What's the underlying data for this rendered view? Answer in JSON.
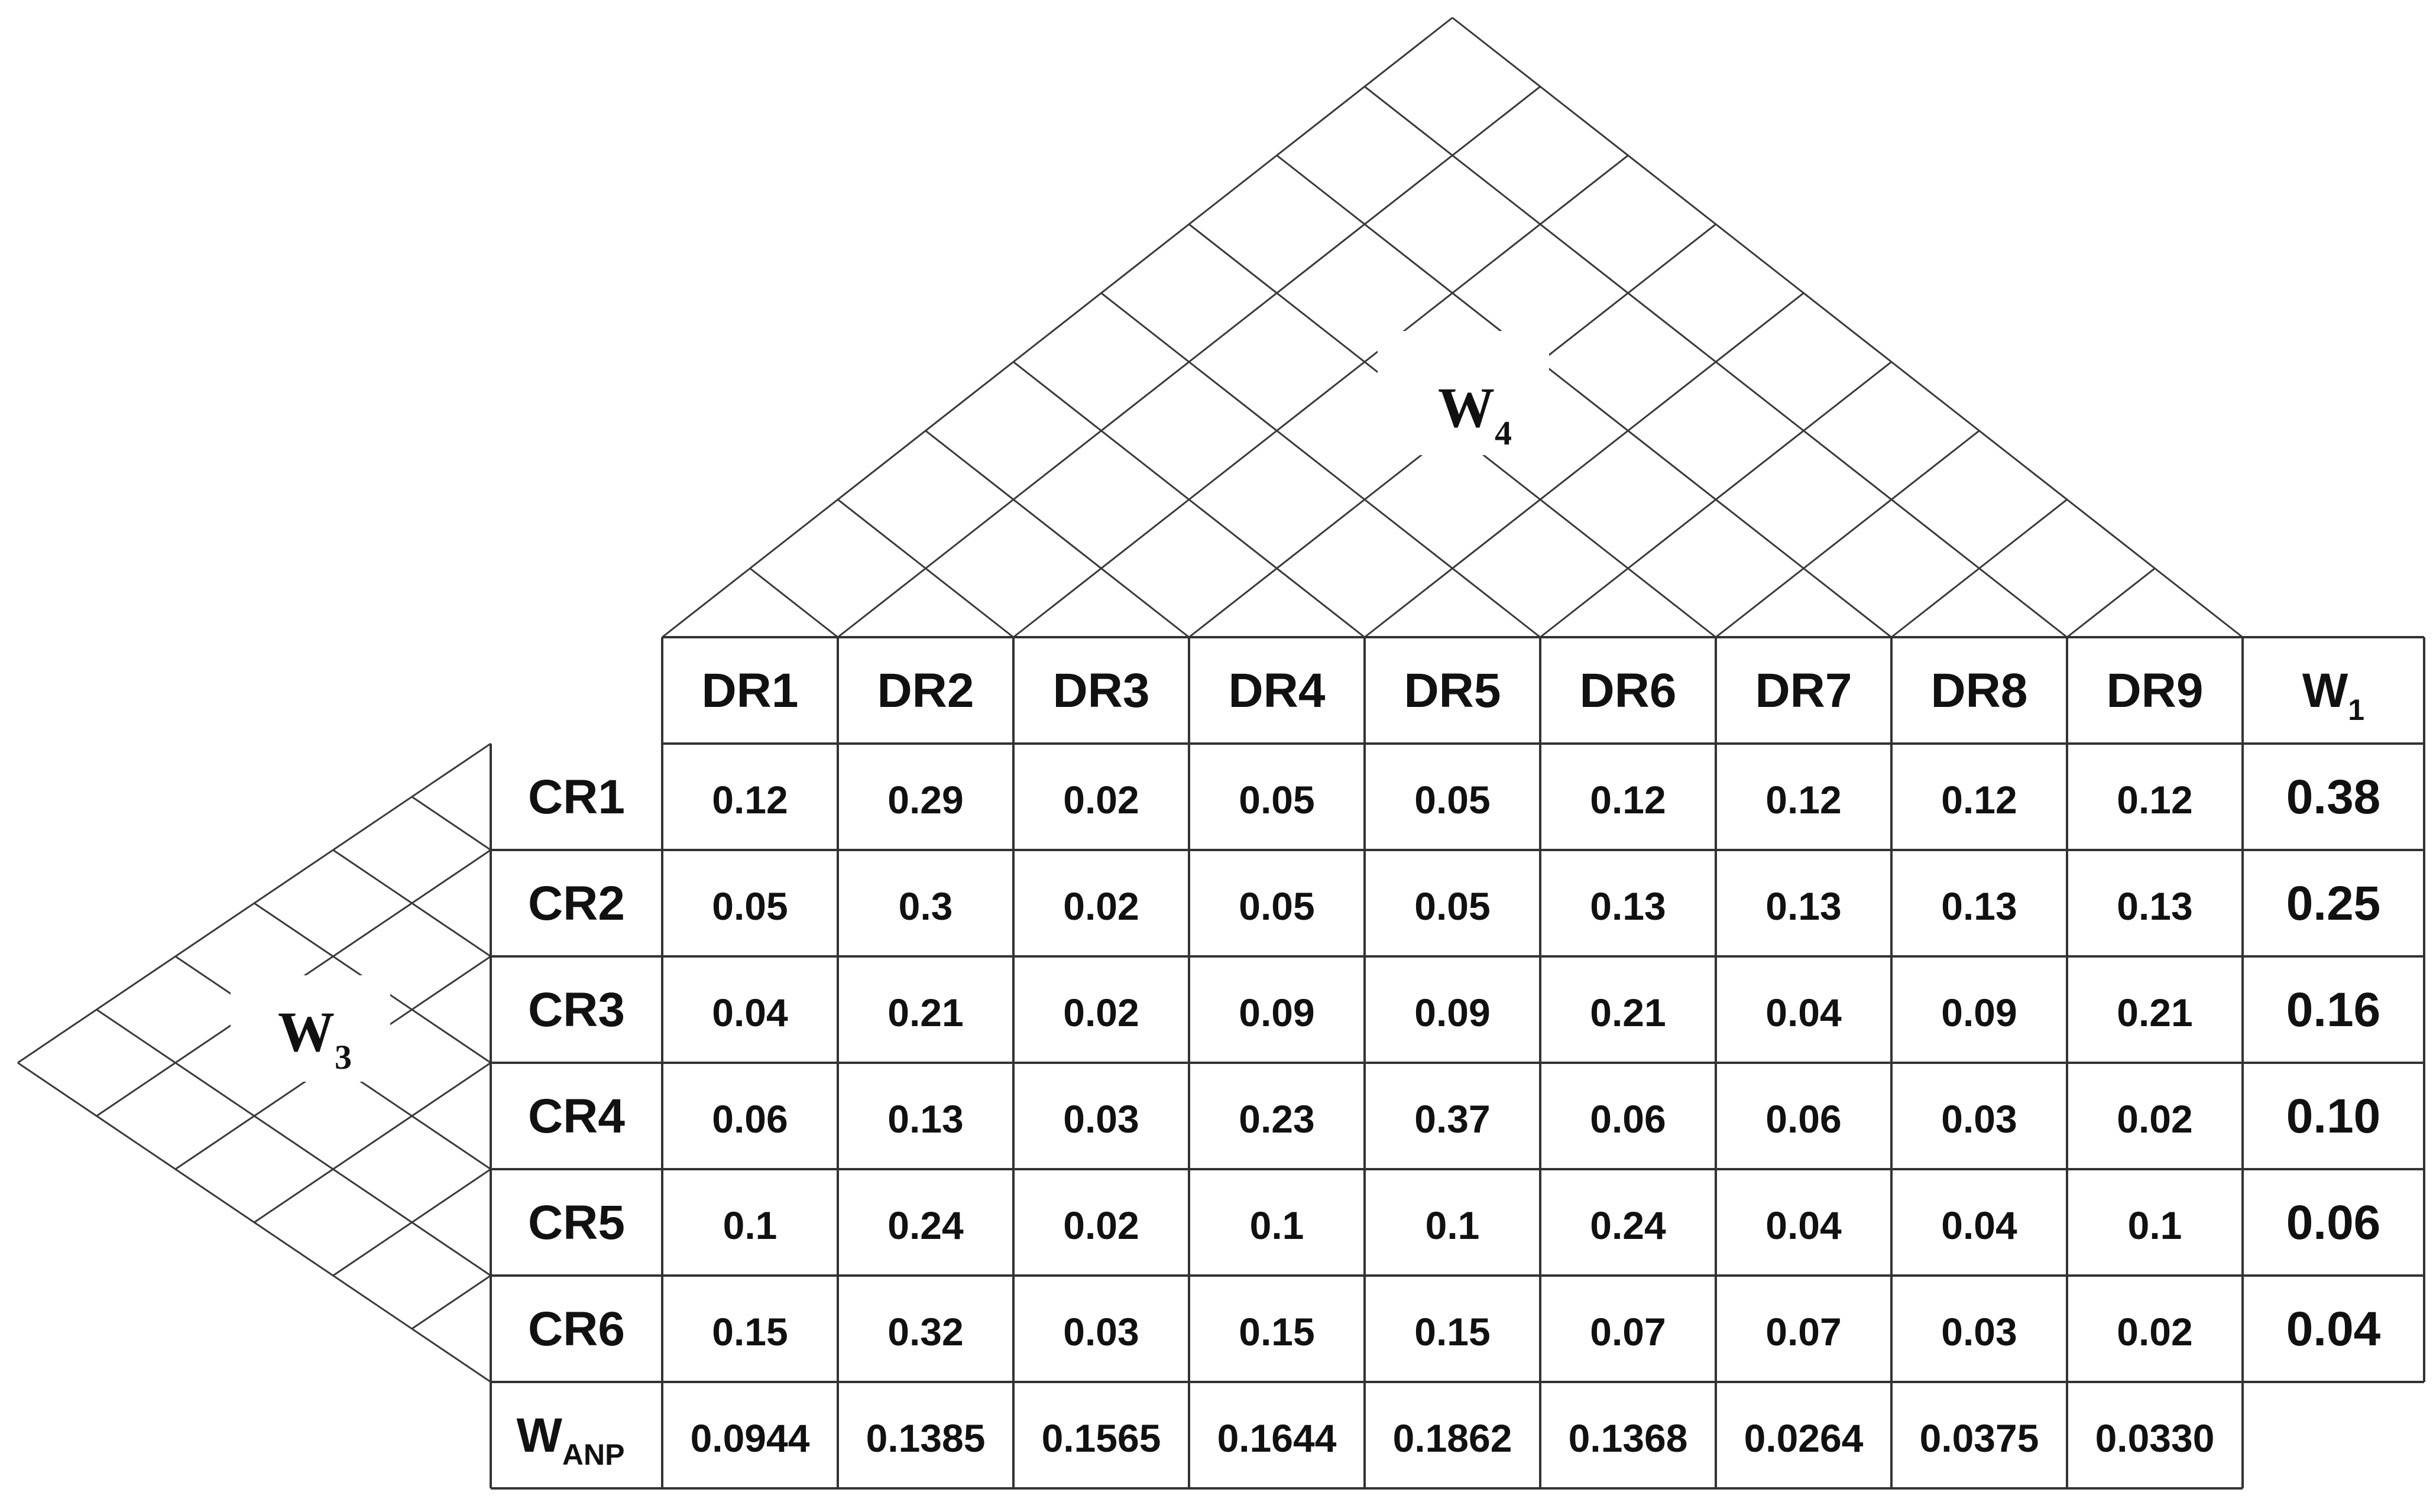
{
  "matrix": {
    "columns": [
      "DR1",
      "DR2",
      "DR3",
      "DR4",
      "DR5",
      "DR6",
      "DR7",
      "DR8",
      "DR9"
    ],
    "weight_column": {
      "main": "W",
      "sub": "1"
    },
    "rows": [
      {
        "label": "CR1",
        "values": [
          "0.12",
          "0.29",
          "0.02",
          "0.05",
          "0.05",
          "0.12",
          "0.12",
          "0.12",
          "0.12"
        ],
        "weight": "0.38"
      },
      {
        "label": "CR2",
        "values": [
          "0.05",
          "0.3",
          "0.02",
          "0.05",
          "0.05",
          "0.13",
          "0.13",
          "0.13",
          "0.13"
        ],
        "weight": "0.25"
      },
      {
        "label": "CR3",
        "values": [
          "0.04",
          "0.21",
          "0.02",
          "0.09",
          "0.09",
          "0.21",
          "0.04",
          "0.09",
          "0.21"
        ],
        "weight": "0.16"
      },
      {
        "label": "CR4",
        "values": [
          "0.06",
          "0.13",
          "0.03",
          "0.23",
          "0.37",
          "0.06",
          "0.06",
          "0.03",
          "0.02"
        ],
        "weight": "0.10"
      },
      {
        "label": "CR5",
        "values": [
          "0.1",
          "0.24",
          "0.02",
          "0.1",
          "0.1",
          "0.24",
          "0.04",
          "0.04",
          "0.1"
        ],
        "weight": "0.06"
      },
      {
        "label": "CR6",
        "values": [
          "0.15",
          "0.32",
          "0.03",
          "0.15",
          "0.15",
          "0.07",
          "0.07",
          "0.03",
          "0.02"
        ],
        "weight": "0.04"
      }
    ],
    "anp_row": {
      "label": {
        "main": "W",
        "sub": "ANP"
      },
      "values": [
        "0.0944",
        "0.1385",
        "0.1565",
        "0.1644",
        "0.1862",
        "0.1368",
        "0.0264",
        "0.0375",
        "0.0330"
      ]
    }
  },
  "roof_label": {
    "main": "W",
    "sub": "4"
  },
  "side_label": {
    "main": "W",
    "sub": "3"
  }
}
